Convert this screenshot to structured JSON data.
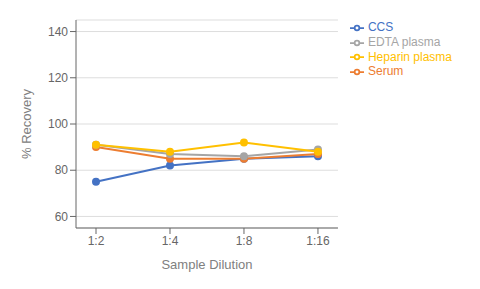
{
  "chart_data": {
    "type": "line",
    "categories": [
      "1:2",
      "1:4",
      "1:8",
      "1:16"
    ],
    "series": [
      {
        "name": "CCS",
        "color": "#4472C4",
        "values": [
          75,
          82,
          85,
          86
        ]
      },
      {
        "name": "Serum",
        "color": "#ED7D31",
        "values": [
          90,
          85,
          85,
          87
        ]
      },
      {
        "name": "EDTA plasma",
        "color": "#A5A5A5",
        "values": [
          91,
          87,
          86,
          89
        ]
      },
      {
        "name": "Heparin plasma",
        "color": "#FFC000",
        "values": [
          91,
          88,
          92,
          88
        ]
      }
    ],
    "xlabel": "Sample Dilution",
    "ylabel": "% Recovery",
    "ylim": [
      55,
      145
    ],
    "yticks": [
      60,
      80,
      100,
      120,
      140
    ],
    "grid": true,
    "legend": "right",
    "marker": "circle"
  }
}
